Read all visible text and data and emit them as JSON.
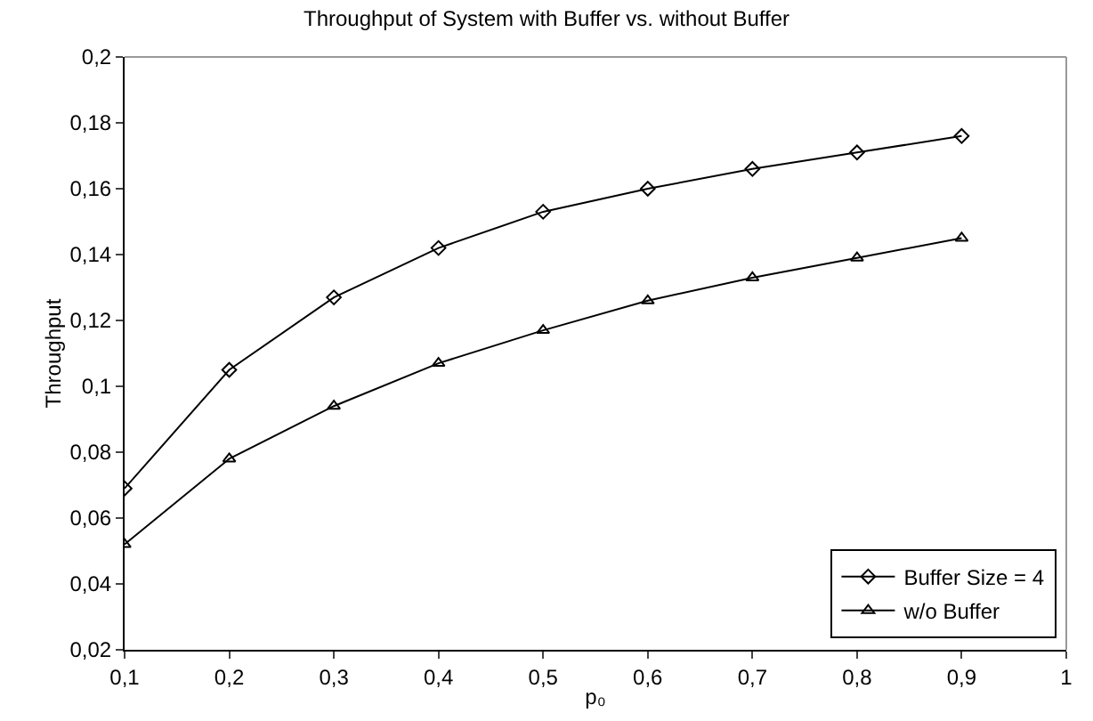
{
  "chart_data": {
    "type": "line",
    "title": "Throughput of System with Buffer vs. without Buffer",
    "xlabel": "p₀",
    "ylabel": "Throughput",
    "x": [
      0.1,
      0.2,
      0.3,
      0.4,
      0.5,
      0.6,
      0.7,
      0.8,
      0.9
    ],
    "series": [
      {
        "name": "Buffer Size = 4",
        "color": "#000000",
        "marker": "diamond",
        "values": [
          0.069,
          0.105,
          0.127,
          0.142,
          0.153,
          0.16,
          0.166,
          0.171,
          0.176
        ]
      },
      {
        "name": "w/o Buffer",
        "color": "#000000",
        "marker": "triangle",
        "values": [
          0.052,
          0.078,
          0.094,
          0.107,
          0.117,
          0.126,
          0.133,
          0.139,
          0.145
        ]
      }
    ],
    "xlim": [
      0.1,
      1
    ],
    "xticks": [
      {
        "value": 0.1,
        "label": "0,1"
      },
      {
        "value": 0.2,
        "label": "0,2"
      },
      {
        "value": 0.3,
        "label": "0,3"
      },
      {
        "value": 0.4,
        "label": "0,4"
      },
      {
        "value": 0.5,
        "label": "0,5"
      },
      {
        "value": 0.6,
        "label": "0,6"
      },
      {
        "value": 0.7,
        "label": "0,7"
      },
      {
        "value": 0.8,
        "label": "0,8"
      },
      {
        "value": 0.9,
        "label": "0,9"
      },
      {
        "value": 1,
        "label": "1"
      }
    ],
    "ylim": [
      0.02,
      0.2
    ],
    "yticks": [
      {
        "value": 0.02,
        "label": "0,02"
      },
      {
        "value": 0.04,
        "label": "0,04"
      },
      {
        "value": 0.06,
        "label": "0,06"
      },
      {
        "value": 0.08,
        "label": "0,08"
      },
      {
        "value": 0.1,
        "label": "0,1"
      },
      {
        "value": 0.12,
        "label": "0,12"
      },
      {
        "value": 0.14,
        "label": "0,14"
      },
      {
        "value": 0.16,
        "label": "0,16"
      },
      {
        "value": 0.18,
        "label": "0,18"
      },
      {
        "value": 0.2,
        "label": "0,2"
      }
    ],
    "grid": false,
    "legend": "bottom right",
    "line_style": "solid"
  }
}
